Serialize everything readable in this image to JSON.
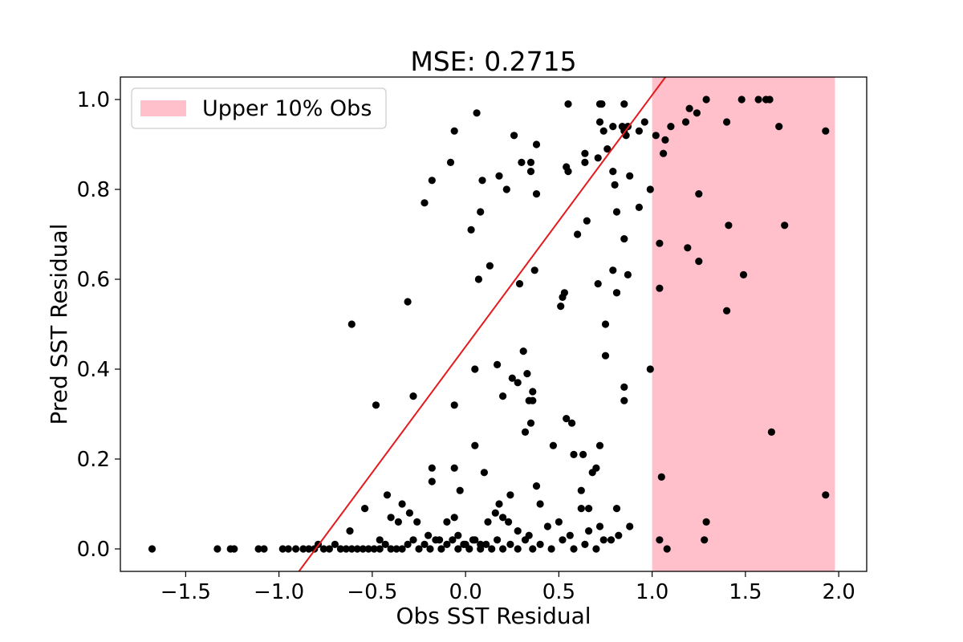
{
  "chart_data": {
    "type": "scatter",
    "title": "MSE: 0.2715",
    "xlabel": "Obs SST Residual",
    "ylabel": "Pred SST Residual",
    "xlim": [
      -1.85,
      2.15
    ],
    "ylim": [
      -0.05,
      1.05
    ],
    "xticks": [
      -1.5,
      -1.0,
      -0.5,
      0.0,
      0.5,
      1.0,
      1.5,
      2.0
    ],
    "xtick_labels": [
      "−1.5",
      "−1.0",
      "−0.5",
      "0.0",
      "0.5",
      "1.0",
      "1.5",
      "2.0"
    ],
    "yticks": [
      0.0,
      0.2,
      0.4,
      0.6,
      0.8,
      1.0
    ],
    "ytick_labels": [
      "0.0",
      "0.2",
      "0.4",
      "0.6",
      "0.8",
      "1.0"
    ],
    "grid": false,
    "legend": {
      "placement": "top-left",
      "entries": [
        "Upper 10% Obs"
      ]
    },
    "shaded_region": {
      "label": "Upper 10% Obs",
      "x_start": 1.0,
      "x_end": 1.98,
      "color": "#ffc0cb"
    },
    "reference_line": {
      "slope": 0.56,
      "intercept": 0.45,
      "color": "#e41a1c"
    },
    "point_color": "#000000",
    "points": [
      [
        -1.68,
        0.0
      ],
      [
        -1.33,
        0.0
      ],
      [
        -1.26,
        0.0
      ],
      [
        -1.24,
        0.0
      ],
      [
        -1.11,
        0.0
      ],
      [
        -1.08,
        0.0
      ],
      [
        -0.98,
        0.0
      ],
      [
        -0.95,
        0.0
      ],
      [
        -0.91,
        0.0
      ],
      [
        -0.87,
        0.0
      ],
      [
        -0.84,
        0.0
      ],
      [
        -0.81,
        0.0
      ],
      [
        -0.79,
        0.01
      ],
      [
        -0.76,
        0.0
      ],
      [
        -0.73,
        0.0
      ],
      [
        -0.7,
        0.01
      ],
      [
        -0.67,
        0.0
      ],
      [
        -0.64,
        0.0
      ],
      [
        -0.61,
        0.0
      ],
      [
        -0.58,
        0.0
      ],
      [
        -0.55,
        0.0
      ],
      [
        -0.52,
        0.0
      ],
      [
        -0.49,
        0.0
      ],
      [
        -0.46,
        0.0
      ],
      [
        -0.43,
        0.01
      ],
      [
        -0.4,
        0.0
      ],
      [
        -0.37,
        0.0
      ],
      [
        -0.34,
        0.0
      ],
      [
        -0.31,
        0.01
      ],
      [
        -0.28,
        0.02
      ],
      [
        -0.25,
        0.0
      ],
      [
        -0.22,
        0.01
      ],
      [
        -0.19,
        0.0
      ],
      [
        -0.16,
        0.02
      ],
      [
        -0.13,
        0.0
      ],
      [
        -0.1,
        0.01
      ],
      [
        -0.07,
        0.02
      ],
      [
        -0.04,
        0.0
      ],
      [
        -0.01,
        0.01
      ],
      [
        0.02,
        0.0
      ],
      [
        0.05,
        0.02
      ],
      [
        0.08,
        0.0
      ],
      [
        0.11,
        0.01
      ],
      [
        0.14,
        0.0
      ],
      [
        0.17,
        0.02
      ],
      [
        0.2,
        0.0
      ],
      [
        0.24,
        0.01
      ],
      [
        0.28,
        0.0
      ],
      [
        0.32,
        0.02
      ],
      [
        0.36,
        0.0
      ],
      [
        0.4,
        0.01
      ],
      [
        0.46,
        0.0
      ],
      [
        0.52,
        0.02
      ],
      [
        0.58,
        0.0
      ],
      [
        0.64,
        0.01
      ],
      [
        0.7,
        0.0
      ],
      [
        0.74,
        0.02
      ],
      [
        -0.62,
        0.04
      ],
      [
        -0.54,
        0.09
      ],
      [
        -0.46,
        0.02
      ],
      [
        -0.4,
        0.07
      ],
      [
        -0.34,
        0.1
      ],
      [
        -0.3,
        0.08
      ],
      [
        -0.26,
        0.06
      ],
      [
        -0.2,
        0.03
      ],
      [
        -0.14,
        0.02
      ],
      [
        -0.1,
        0.06
      ],
      [
        -0.06,
        0.07
      ],
      [
        -0.04,
        0.03
      ],
      [
        0.0,
        0.01
      ],
      [
        0.04,
        0.02
      ],
      [
        0.08,
        0.01
      ],
      [
        0.12,
        0.06
      ],
      [
        0.16,
        0.08
      ],
      [
        0.2,
        0.07
      ],
      [
        0.23,
        0.06
      ],
      [
        0.28,
        0.04
      ],
      [
        0.34,
        0.03
      ],
      [
        0.4,
        0.1
      ],
      [
        0.44,
        0.05
      ],
      [
        0.5,
        0.06
      ],
      [
        0.56,
        0.03
      ],
      [
        0.62,
        0.09
      ],
      [
        0.66,
        0.04
      ],
      [
        0.72,
        0.05
      ],
      [
        0.78,
        0.02
      ],
      [
        0.82,
        0.03
      ],
      [
        0.88,
        0.05
      ],
      [
        -0.42,
        0.12
      ],
      [
        -0.36,
        0.06
      ],
      [
        -0.18,
        0.15
      ],
      [
        -0.18,
        0.18
      ],
      [
        -0.06,
        0.18
      ],
      [
        -0.03,
        0.13
      ],
      [
        0.05,
        0.23
      ],
      [
        0.1,
        0.17
      ],
      [
        0.18,
        0.1
      ],
      [
        0.24,
        0.12
      ],
      [
        0.32,
        0.26
      ],
      [
        0.35,
        0.28
      ],
      [
        0.38,
        0.14
      ],
      [
        0.47,
        0.23
      ],
      [
        0.54,
        0.29
      ],
      [
        0.57,
        0.28
      ],
      [
        0.58,
        0.21
      ],
      [
        0.62,
        0.13
      ],
      [
        0.63,
        0.21
      ],
      [
        0.66,
        0.09
      ],
      [
        0.68,
        0.17
      ],
      [
        0.7,
        0.18
      ],
      [
        0.72,
        0.23
      ],
      [
        0.81,
        0.09
      ],
      [
        -0.48,
        0.32
      ],
      [
        -0.28,
        0.34
      ],
      [
        -0.06,
        0.32
      ],
      [
        0.05,
        0.4
      ],
      [
        0.17,
        0.41
      ],
      [
        0.2,
        0.34
      ],
      [
        0.25,
        0.38
      ],
      [
        0.28,
        0.37
      ],
      [
        0.31,
        0.44
      ],
      [
        0.33,
        0.39
      ],
      [
        0.34,
        0.33
      ],
      [
        0.36,
        0.33
      ],
      [
        0.36,
        0.35
      ],
      [
        0.75,
        0.43
      ],
      [
        0.85,
        0.36
      ],
      [
        0.85,
        0.33
      ],
      [
        0.99,
        0.4
      ],
      [
        -0.61,
        0.5
      ],
      [
        -0.31,
        0.55
      ],
      [
        0.07,
        0.6
      ],
      [
        0.13,
        0.63
      ],
      [
        0.29,
        0.59
      ],
      [
        0.37,
        0.62
      ],
      [
        0.51,
        0.54
      ],
      [
        0.52,
        0.56
      ],
      [
        0.53,
        0.57
      ],
      [
        0.71,
        0.59
      ],
      [
        0.75,
        0.5
      ],
      [
        0.79,
        0.62
      ],
      [
        0.81,
        0.57
      ],
      [
        0.81,
        0.57
      ],
      [
        0.85,
        0.69
      ],
      [
        0.87,
        0.61
      ],
      [
        -0.22,
        0.77
      ],
      [
        0.03,
        0.71
      ],
      [
        0.08,
        0.75
      ],
      [
        0.09,
        0.82
      ],
      [
        0.18,
        0.83
      ],
      [
        0.22,
        0.8
      ],
      [
        0.38,
        0.79
      ],
      [
        0.6,
        0.7
      ],
      [
        0.65,
        0.73
      ],
      [
        0.79,
        0.84
      ],
      [
        0.8,
        0.81
      ],
      [
        0.81,
        0.75
      ],
      [
        0.88,
        0.83
      ],
      [
        0.93,
        0.76
      ],
      [
        0.99,
        0.8
      ],
      [
        -0.18,
        0.82
      ],
      [
        -0.08,
        0.86
      ],
      [
        -0.06,
        0.93
      ],
      [
        0.06,
        0.97
      ],
      [
        0.26,
        0.92
      ],
      [
        0.3,
        0.86
      ],
      [
        0.35,
        0.86
      ],
      [
        0.35,
        0.84
      ],
      [
        0.38,
        0.9
      ],
      [
        0.54,
        0.85
      ],
      [
        0.55,
        0.84
      ],
      [
        0.55,
        0.99
      ],
      [
        0.64,
        0.86
      ],
      [
        0.64,
        0.88
      ],
      [
        0.71,
        0.87
      ],
      [
        0.72,
        0.95
      ],
      [
        0.72,
        0.99
      ],
      [
        0.74,
        0.93
      ],
      [
        0.76,
        0.89
      ],
      [
        0.79,
        0.94
      ],
      [
        0.84,
        0.94
      ],
      [
        0.85,
        0.93
      ],
      [
        0.86,
        0.92
      ],
      [
        0.87,
        0.94
      ],
      [
        0.93,
        0.93
      ],
      [
        0.96,
        0.95
      ],
      [
        0.73,
        0.99
      ],
      [
        0.85,
        0.99
      ],
      [
        1.02,
        0.92
      ],
      [
        1.06,
        0.88
      ],
      [
        1.07,
        0.91
      ],
      [
        1.1,
        0.94
      ],
      [
        1.18,
        0.95
      ],
      [
        1.2,
        0.98
      ],
      [
        1.24,
        0.97
      ],
      [
        1.29,
        1.0
      ],
      [
        1.4,
        0.95
      ],
      [
        1.48,
        1.0
      ],
      [
        1.57,
        1.0
      ],
      [
        1.61,
        1.0
      ],
      [
        1.63,
        1.0
      ],
      [
        1.68,
        0.94
      ],
      [
        1.93,
        0.93
      ],
      [
        1.25,
        0.79
      ],
      [
        1.04,
        0.68
      ],
      [
        1.19,
        0.67
      ],
      [
        1.25,
        0.64
      ],
      [
        1.41,
        0.72
      ],
      [
        1.71,
        0.72
      ],
      [
        1.04,
        0.58
      ],
      [
        1.49,
        0.61
      ],
      [
        1.4,
        0.53
      ],
      [
        1.64,
        0.26
      ],
      [
        1.05,
        0.16
      ],
      [
        1.93,
        0.12
      ],
      [
        1.29,
        0.06
      ],
      [
        1.04,
        0.02
      ],
      [
        1.28,
        0.02
      ],
      [
        1.08,
        0.0
      ]
    ]
  }
}
